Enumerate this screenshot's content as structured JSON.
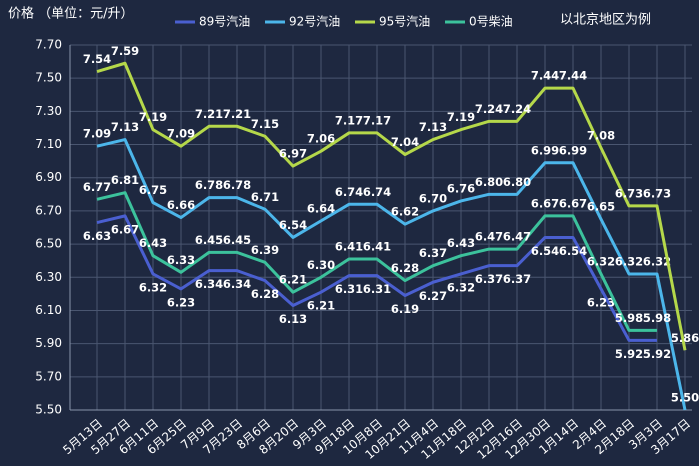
{
  "chart_data": {
    "type": "line",
    "title": "价格 （单位：元/升）",
    "subtitle": "以北京地区为例",
    "categories": [
      "5月13日",
      "5月27日",
      "6月11日",
      "6月25日",
      "7月9日",
      "7月23日",
      "8月6日",
      "8月20日",
      "9月3日",
      "9月18日",
      "10月8日",
      "10月21日",
      "11月4日",
      "11月18日",
      "12月2日",
      "12月16日",
      "12月30日",
      "1月14日",
      "2月4日",
      "2月18日",
      "3月3日",
      "3月17日"
    ],
    "series": [
      {
        "name": "89号汽油",
        "color": "#4a5fd0",
        "values": [
          6.63,
          6.67,
          6.32,
          6.23,
          6.34,
          6.34,
          6.28,
          6.13,
          6.21,
          6.31,
          6.31,
          6.19,
          6.27,
          6.32,
          6.37,
          6.37,
          6.54,
          6.54,
          6.23,
          5.92,
          5.92,
          null
        ],
        "value_labels": [
          "6.63",
          "6.67",
          "6.32",
          "6.23",
          "6.34",
          "6.34",
          "6.28",
          "6.13",
          "6.21",
          "6.31",
          "6.31",
          "6.19",
          "6.27",
          "6.32",
          "6.37",
          "6.37",
          "6.54",
          "6.54",
          "6.23",
          "5.92",
          "5.92",
          null
        ]
      },
      {
        "name": "92号汽油",
        "color": "#4cb6ea",
        "values": [
          7.09,
          7.13,
          6.75,
          6.66,
          6.78,
          6.78,
          6.71,
          6.54,
          6.64,
          6.74,
          6.74,
          6.62,
          6.7,
          6.76,
          6.8,
          6.8,
          6.99,
          6.99,
          6.65,
          6.32,
          6.32,
          5.5
        ],
        "value_labels": [
          "7.09",
          "7.13",
          "6.75",
          "6.66",
          "6.78",
          "6.78",
          "6.71",
          "6.54",
          "6.64",
          "6.74",
          "6.74",
          "6.62",
          "6.70",
          "6.76",
          "6.80",
          "6.80",
          "6.99",
          "6.99",
          "6.65",
          "6.32",
          "6.32",
          "5.50"
        ]
      },
      {
        "name": "95号汽油",
        "color": "#b5d84a",
        "values": [
          7.54,
          7.59,
          7.19,
          7.09,
          7.21,
          7.21,
          7.15,
          6.97,
          7.06,
          7.17,
          7.17,
          7.04,
          7.13,
          7.19,
          7.24,
          7.24,
          7.44,
          7.44,
          7.08,
          6.73,
          6.73,
          5.86
        ],
        "value_labels": [
          "7.54",
          "7.59",
          "7.19",
          "7.09",
          "7.21",
          "7.21",
          "7.15",
          "6.97",
          "7.06",
          "7.17",
          "7.17",
          "7.04",
          "7.13",
          "7.19",
          "7.24",
          "7.24",
          "7.44",
          "7.44",
          "7.08",
          "6.73",
          "6.73",
          "5.86"
        ]
      },
      {
        "name": "0号柴油",
        "color": "#3cc29c",
        "values": [
          6.77,
          6.81,
          6.43,
          6.33,
          6.45,
          6.45,
          6.39,
          6.21,
          6.3,
          6.41,
          6.41,
          6.28,
          6.37,
          6.43,
          6.47,
          6.47,
          6.67,
          6.67,
          6.32,
          5.98,
          5.98,
          null
        ],
        "value_labels": [
          "6.77",
          "6.81",
          "6.43",
          "6.33",
          "6.45",
          "6.45",
          "6.39",
          "6.21",
          "6.30",
          "6.41",
          "6.41",
          "6.28",
          "6.37",
          "6.43",
          "6.47",
          "6.47",
          "6.67",
          "6.67",
          "6.32",
          "5.98",
          "5.98",
          null
        ]
      }
    ],
    "ylim": [
      5.5,
      7.7
    ],
    "yticks": [
      {
        "value": 5.5,
        "label": "5.50"
      },
      {
        "value": 5.7,
        "label": "5.70"
      },
      {
        "value": 5.9,
        "label": "5.90"
      },
      {
        "value": 6.1,
        "label": "6.10"
      },
      {
        "value": 6.3,
        "label": "6.30"
      },
      {
        "value": 6.5,
        "label": "6.50"
      },
      {
        "value": 6.7,
        "label": "6.70"
      },
      {
        "value": 6.9,
        "label": "6.90"
      },
      {
        "value": 7.1,
        "label": "7.10"
      },
      {
        "value": 7.3,
        "label": "7.30"
      },
      {
        "value": 7.5,
        "label": "7.50"
      },
      {
        "value": 7.7,
        "label": "7.70"
      }
    ],
    "grid": true
  }
}
